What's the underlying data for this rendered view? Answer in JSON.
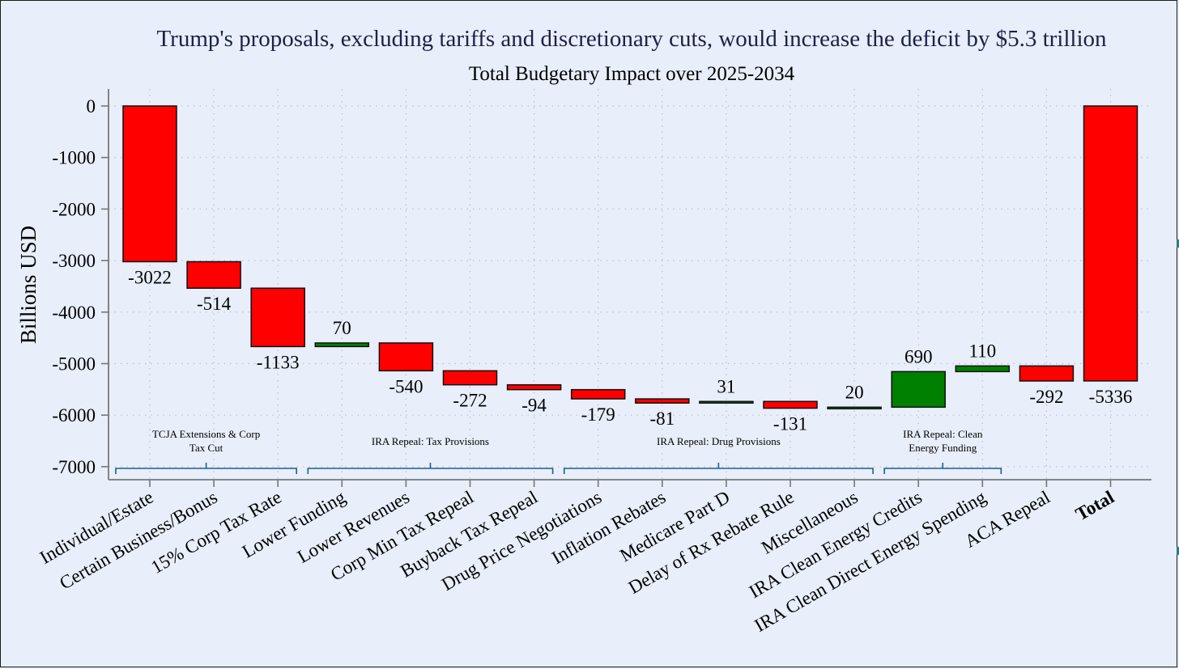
{
  "chart_data": {
    "type": "waterfall",
    "title": "Trump's proposals, excluding tariffs and discretionary cuts, would increase the deficit by $5.3 trillion",
    "subtitle": "Total Budgetary Impact over 2025-2034",
    "ylabel": "Billions USD",
    "xlabel": "",
    "ylim": [
      -7200,
      150
    ],
    "yticks": [
      0,
      -1000,
      -2000,
      -3000,
      -4000,
      -5000,
      -6000,
      -7000
    ],
    "grid": true,
    "categories": [
      "Individual/Estate",
      "Certain Business/Bonus",
      "15% Corp Tax Rate",
      "Lower Funding",
      "Lower Revenues",
      "Corp Min Tax Repeal",
      "Buyback Tax Repeal",
      "Drug Price Negotiations",
      "Inflation Rebates",
      "Medicare Part D",
      "Delay of Rx Rebate Rule",
      "Miscellaneous",
      "IRA Clean Energy Credits",
      "IRA Clean Direct Energy Spending",
      "ACA Repeal",
      "Total"
    ],
    "values": [
      -3022,
      -514,
      -1133,
      70,
      -540,
      -272,
      -94,
      -179,
      -81,
      31,
      -131,
      20,
      690,
      110,
      -292,
      -5336
    ],
    "value_labels": [
      "-3022",
      "-514",
      "-1133",
      "70",
      "-540",
      "-272",
      "-94",
      "-179",
      "-81",
      "31",
      "-131",
      "20",
      "690",
      "110",
      "-292",
      "-5336"
    ],
    "total_index": 15,
    "colors": {
      "negative": "#ff0000",
      "positive": "#008000",
      "bracket": "#1f5f8b",
      "axis": "#777777",
      "grid": "#b8bfcc"
    },
    "groups": [
      {
        "label_lines": [
          "TCJA Extensions & Corp",
          "Tax Cut"
        ],
        "first": 0,
        "last": 2
      },
      {
        "label_lines": [
          "IRA Repeal: Tax Provisions"
        ],
        "first": 3,
        "last": 6
      },
      {
        "label_lines": [
          "IRA Repeal: Drug Provisions"
        ],
        "first": 7,
        "last": 11
      },
      {
        "label_lines": [
          "IRA Repeal: Clean",
          "Energy Funding"
        ],
        "first": 12,
        "last": 13
      }
    ]
  }
}
